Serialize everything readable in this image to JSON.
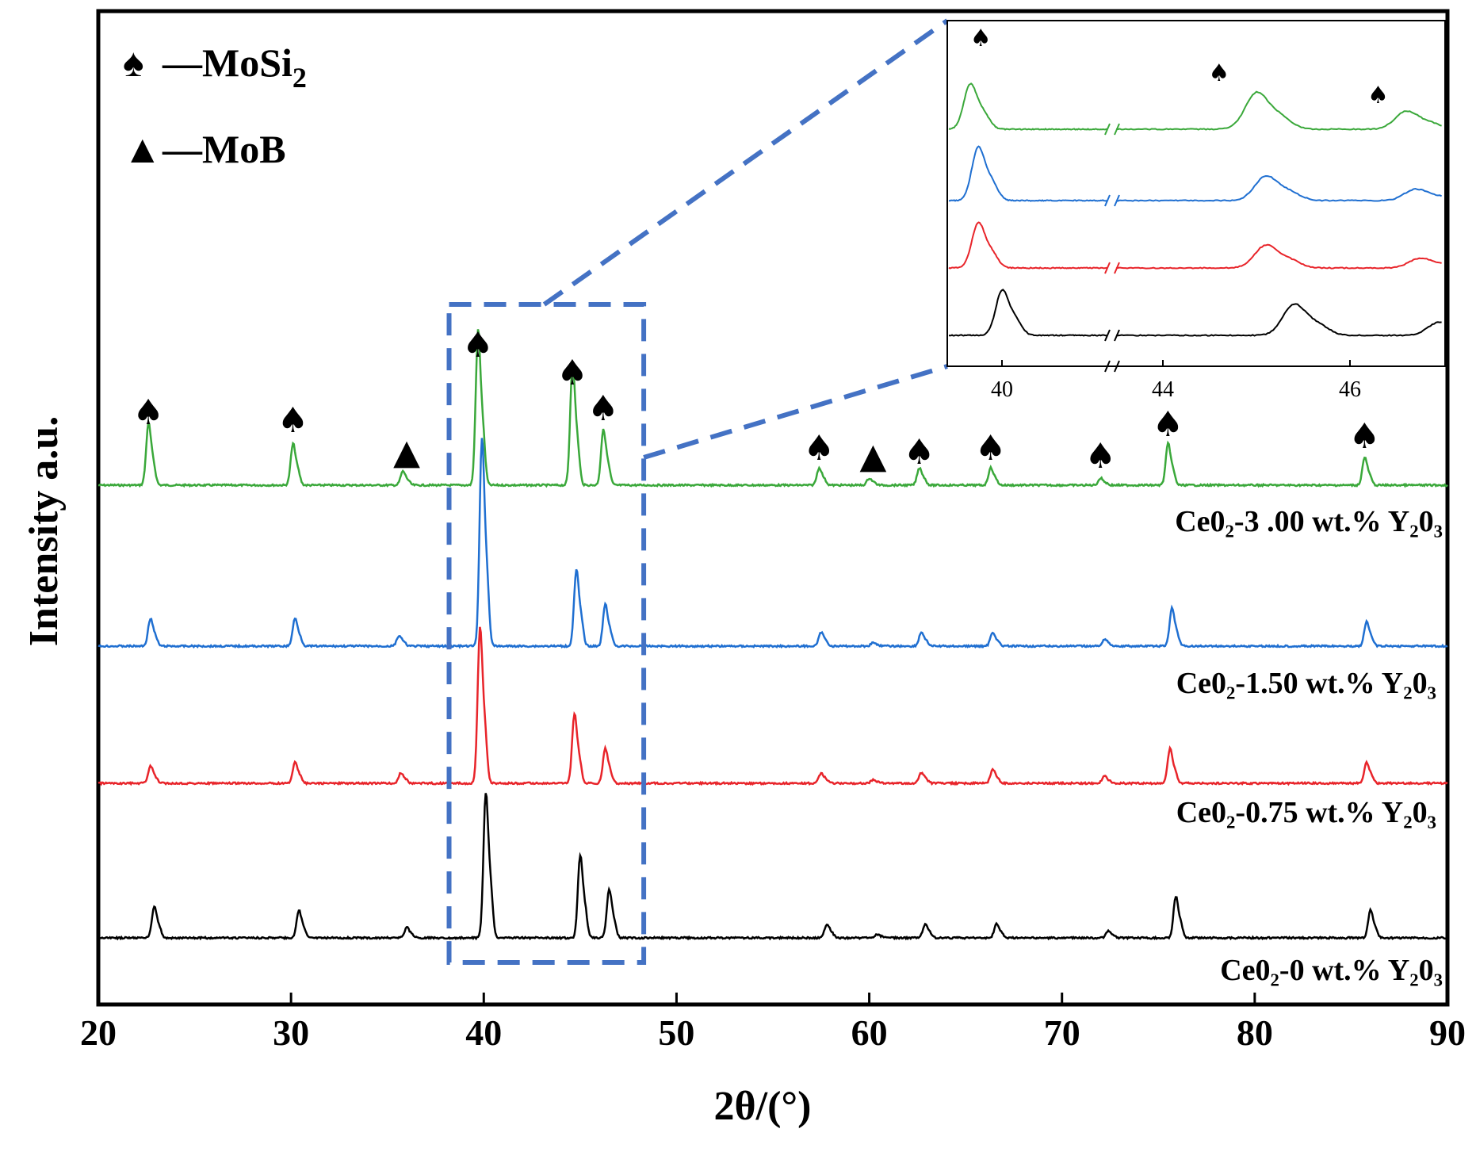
{
  "chart_data": {
    "type": "line",
    "title": "",
    "xlabel": "2θ/(°)",
    "ylabel": "Intensity a.u.",
    "xlim": [
      20,
      90
    ],
    "xticks": [
      "20",
      "30",
      "40",
      "50",
      "60",
      "70",
      "80",
      "90"
    ],
    "legend": [
      {
        "symbol": "♠",
        "label": "—MoSi",
        "sub": "2",
        "phase": "MoSi2"
      },
      {
        "symbol": "▲",
        "label": "—MoB",
        "sub": "",
        "phase": "MoB"
      }
    ],
    "series": [
      {
        "name": "Ce0₂-3 .00 wt.% Y₂0₃",
        "color": "#3aa83a",
        "shift": -0.35,
        "peak_scale": 1.0
      },
      {
        "name": "Ce0₂-1.50 wt.% Y₂0₃",
        "color": "#1f6fd1",
        "shift": -0.15,
        "peak_scale": 1.0
      },
      {
        "name": "Ce0₂-0.75 wt.% Y₂0₃",
        "color": "#e8242a",
        "shift": -0.2,
        "peak_scale": 1.0
      },
      {
        "name": "Ce0₂-0 wt.% Y₂0₃",
        "color": "#000000",
        "shift": 0.0,
        "peak_scale": 1.0
      }
    ],
    "peaks": {
      "green": [
        [
          22.6,
          0.18
        ],
        [
          30.1,
          0.12
        ],
        [
          35.8,
          0.04
        ],
        [
          39.7,
          0.45
        ],
        [
          44.6,
          0.35
        ],
        [
          46.2,
          0.16
        ],
        [
          57.4,
          0.05
        ],
        [
          60.0,
          0.02
        ],
        [
          62.6,
          0.05
        ],
        [
          66.3,
          0.05
        ],
        [
          72.0,
          0.02
        ],
        [
          75.5,
          0.12
        ],
        [
          85.7,
          0.08
        ]
      ],
      "blue": [
        [
          22.7,
          0.08
        ],
        [
          30.2,
          0.08
        ],
        [
          35.6,
          0.03
        ],
        [
          39.9,
          0.6
        ],
        [
          44.8,
          0.22
        ],
        [
          46.3,
          0.12
        ],
        [
          57.5,
          0.04
        ],
        [
          60.2,
          0.01
        ],
        [
          62.7,
          0.04
        ],
        [
          66.4,
          0.04
        ],
        [
          72.2,
          0.02
        ],
        [
          75.7,
          0.11
        ],
        [
          85.8,
          0.07
        ]
      ],
      "red": [
        [
          22.7,
          0.05
        ],
        [
          30.2,
          0.06
        ],
        [
          35.7,
          0.03
        ],
        [
          39.8,
          0.45
        ],
        [
          44.7,
          0.2
        ],
        [
          46.3,
          0.1
        ],
        [
          57.5,
          0.03
        ],
        [
          60.2,
          0.01
        ],
        [
          62.7,
          0.03
        ],
        [
          66.4,
          0.04
        ],
        [
          72.2,
          0.02
        ],
        [
          75.6,
          0.1
        ],
        [
          85.8,
          0.06
        ]
      ],
      "black": [
        [
          22.9,
          0.09
        ],
        [
          30.4,
          0.08
        ],
        [
          36.0,
          0.03
        ],
        [
          40.1,
          0.42
        ],
        [
          45.0,
          0.24
        ],
        [
          46.5,
          0.14
        ],
        [
          57.8,
          0.04
        ],
        [
          60.4,
          0.01
        ],
        [
          62.9,
          0.04
        ],
        [
          66.6,
          0.04
        ],
        [
          72.4,
          0.02
        ],
        [
          75.9,
          0.12
        ],
        [
          86.0,
          0.08
        ]
      ]
    },
    "phase_markers": [
      {
        "x": 22.6,
        "symbol": "♠"
      },
      {
        "x": 30.1,
        "symbol": "♠"
      },
      {
        "x": 36.0,
        "symbol": "▲"
      },
      {
        "x": 39.7,
        "symbol": "♠"
      },
      {
        "x": 44.6,
        "symbol": "♠"
      },
      {
        "x": 46.2,
        "symbol": "♠"
      },
      {
        "x": 57.4,
        "symbol": "♠"
      },
      {
        "x": 60.2,
        "symbol": "▲"
      },
      {
        "x": 62.6,
        "symbol": "♠"
      },
      {
        "x": 66.3,
        "symbol": "♠"
      },
      {
        "x": 72.0,
        "symbol": "♠"
      },
      {
        "x": 75.5,
        "symbol": "♠"
      },
      {
        "x": 85.7,
        "symbol": "♠"
      }
    ],
    "zoom_box": {
      "x_from": 38.2,
      "x_to": 48.3
    },
    "inset": {
      "xticks": [
        "40",
        "44",
        "46"
      ],
      "markers": [
        {
          "x": 39.6,
          "symbol": "♠"
        },
        {
          "x": 44.6,
          "symbol": "♠"
        },
        {
          "x": 46.3,
          "symbol": "♠"
        }
      ]
    },
    "colors": {
      "axis": "#000000",
      "zoom_box": "#4472c4"
    }
  }
}
